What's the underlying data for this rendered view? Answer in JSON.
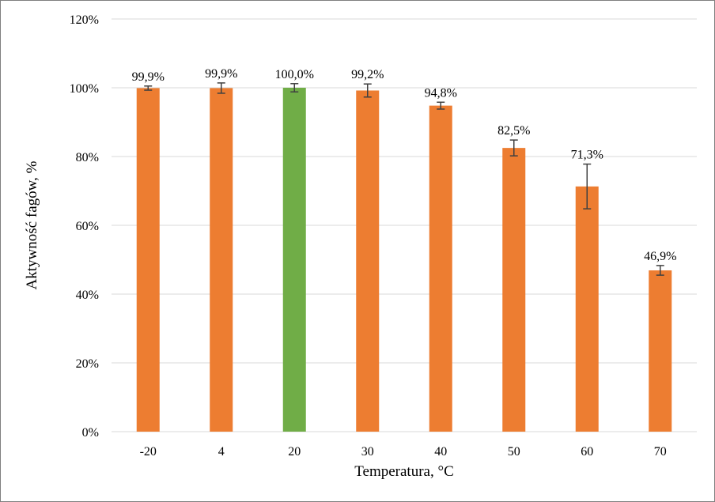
{
  "chart_data": {
    "type": "bar",
    "title": "",
    "xlabel": "Temperatura, °C",
    "ylabel": "Aktywność fagów, %",
    "categories": [
      "-20",
      "4",
      "20",
      "30",
      "40",
      "50",
      "60",
      "70"
    ],
    "values": [
      99.9,
      99.9,
      100.0,
      99.2,
      94.8,
      82.5,
      71.3,
      46.9
    ],
    "data_labels": [
      "99,9%",
      "99,9%",
      "100,0%",
      "99,2%",
      "94,8%",
      "82,5%",
      "71,3%",
      "46,9%"
    ],
    "error": [
      0.6,
      1.5,
      1.2,
      1.9,
      1.0,
      2.3,
      6.5,
      1.4
    ],
    "bar_colors": [
      "#ed7d31",
      "#ed7d31",
      "#70ad47",
      "#ed7d31",
      "#ed7d31",
      "#ed7d31",
      "#ed7d31",
      "#ed7d31"
    ],
    "ylim": [
      0,
      120
    ],
    "yticks": [
      0,
      20,
      40,
      60,
      80,
      100,
      120
    ],
    "ytick_labels": [
      "0%",
      "20%",
      "40%",
      "60%",
      "80%",
      "100%",
      "120%"
    ],
    "grid": true,
    "legend": "none",
    "colors": {
      "gridline": "#d9d9d9",
      "error_bar": "#404040",
      "border": "#7f7f7f"
    }
  }
}
